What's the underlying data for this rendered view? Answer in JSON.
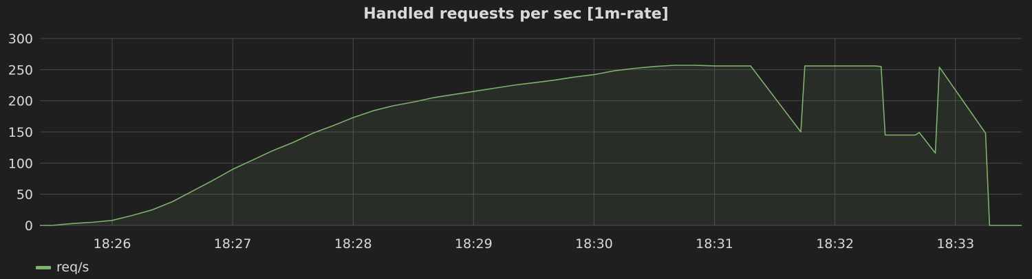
{
  "panel": {
    "title": "Handled requests per sec [1m-rate]"
  },
  "legend": {
    "label": "req/s"
  },
  "colors": {
    "series": "#7eb26d",
    "grid": "#4a4a4a",
    "background": "#1f1f20",
    "text": "#d8d9da"
  },
  "chart_data": {
    "type": "area",
    "title": "Handled requests per sec [1m-rate]",
    "xlabel": "",
    "ylabel": "",
    "ylim": [
      0,
      300
    ],
    "xlim": [
      "18:25:24",
      "18:33:33"
    ],
    "y_ticks": [
      0,
      50,
      100,
      150,
      200,
      250,
      300
    ],
    "x_ticks": [
      "18:26",
      "18:27",
      "18:28",
      "18:29",
      "18:30",
      "18:31",
      "18:32",
      "18:33"
    ],
    "grid": true,
    "legend_position": "bottom-left",
    "series": [
      {
        "name": "req/s",
        "color": "#7eb26d",
        "points": [
          [
            "18:25:24",
            0
          ],
          [
            "18:25:30",
            0
          ],
          [
            "18:25:40",
            3
          ],
          [
            "18:25:50",
            5
          ],
          [
            "18:26:00",
            8
          ],
          [
            "18:26:10",
            16
          ],
          [
            "18:26:20",
            25
          ],
          [
            "18:26:30",
            38
          ],
          [
            "18:26:40",
            55
          ],
          [
            "18:26:50",
            72
          ],
          [
            "18:27:00",
            90
          ],
          [
            "18:27:10",
            105
          ],
          [
            "18:27:20",
            120
          ],
          [
            "18:27:30",
            133
          ],
          [
            "18:27:40",
            148
          ],
          [
            "18:27:50",
            160
          ],
          [
            "18:28:00",
            173
          ],
          [
            "18:28:10",
            184
          ],
          [
            "18:28:20",
            192
          ],
          [
            "18:28:30",
            198
          ],
          [
            "18:28:40",
            205
          ],
          [
            "18:28:50",
            210
          ],
          [
            "18:29:00",
            215
          ],
          [
            "18:29:10",
            220
          ],
          [
            "18:29:20",
            225
          ],
          [
            "18:29:30",
            229
          ],
          [
            "18:29:40",
            233
          ],
          [
            "18:29:50",
            238
          ],
          [
            "18:30:00",
            242
          ],
          [
            "18:30:10",
            248
          ],
          [
            "18:30:20",
            252
          ],
          [
            "18:30:30",
            255
          ],
          [
            "18:30:40",
            257
          ],
          [
            "18:30:50",
            257
          ],
          [
            "18:31:00",
            256
          ],
          [
            "18:31:10",
            256
          ],
          [
            "18:31:18",
            256
          ],
          [
            "18:31:43",
            150
          ],
          [
            "18:31:45",
            256
          ],
          [
            "18:32:00",
            256
          ],
          [
            "18:32:20",
            256
          ],
          [
            "18:32:23",
            255
          ],
          [
            "18:32:25",
            145
          ],
          [
            "18:32:35",
            145
          ],
          [
            "18:32:40",
            145
          ],
          [
            "18:32:42",
            149
          ],
          [
            "18:32:50",
            116
          ],
          [
            "18:32:52",
            254
          ],
          [
            "18:33:15",
            148
          ],
          [
            "18:33:17",
            0
          ],
          [
            "18:33:33",
            0
          ]
        ]
      }
    ]
  }
}
